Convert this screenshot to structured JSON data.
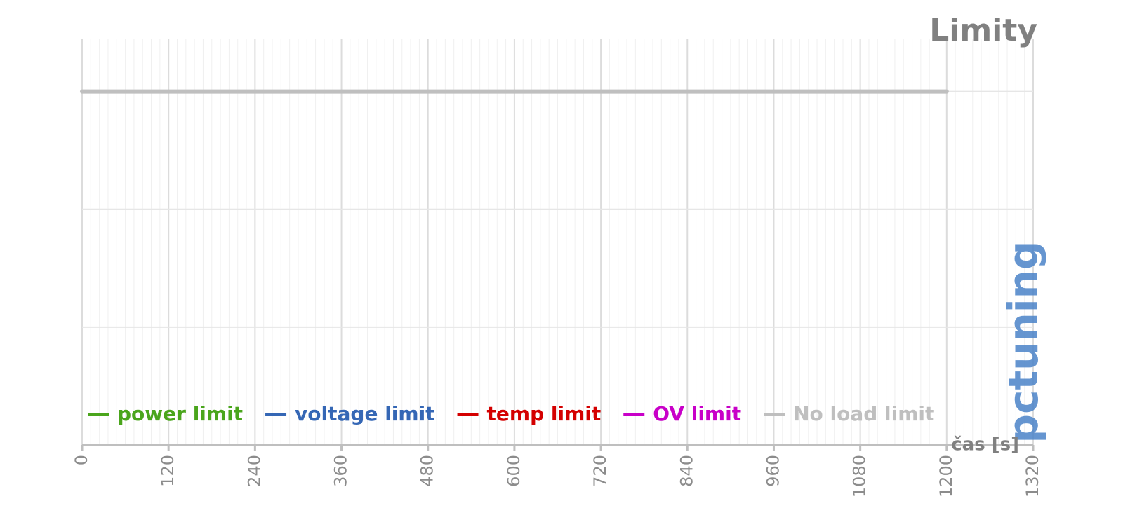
{
  "chart_data": {
    "type": "line",
    "title": "Limity",
    "x_label": "čas [s]",
    "x": [
      0,
      1200
    ],
    "series": [
      {
        "name": "power limit",
        "color": "#4aa51c",
        "values": [
          null,
          null
        ]
      },
      {
        "name": "voltage limit",
        "color": "#3567b5",
        "values": [
          null,
          null
        ]
      },
      {
        "name": "temp limit",
        "color": "#d40000",
        "values": [
          null,
          null
        ]
      },
      {
        "name": "OV limit",
        "color": "#c800c8",
        "values": [
          null,
          null
        ]
      },
      {
        "name": "No load limit",
        "color": "#bfbfbf",
        "values": [
          3,
          3
        ]
      }
    ],
    "xlim": [
      0,
      1320
    ],
    "xticks": [
      0,
      120,
      240,
      360,
      480,
      600,
      720,
      840,
      960,
      1080,
      1200,
      1320
    ],
    "ylim": [
      0,
      3.45
    ],
    "yticks": [
      0,
      1,
      2,
      3
    ],
    "grid": true,
    "minor_grid": true,
    "legend": "bottom",
    "watermark": "pctuning"
  }
}
